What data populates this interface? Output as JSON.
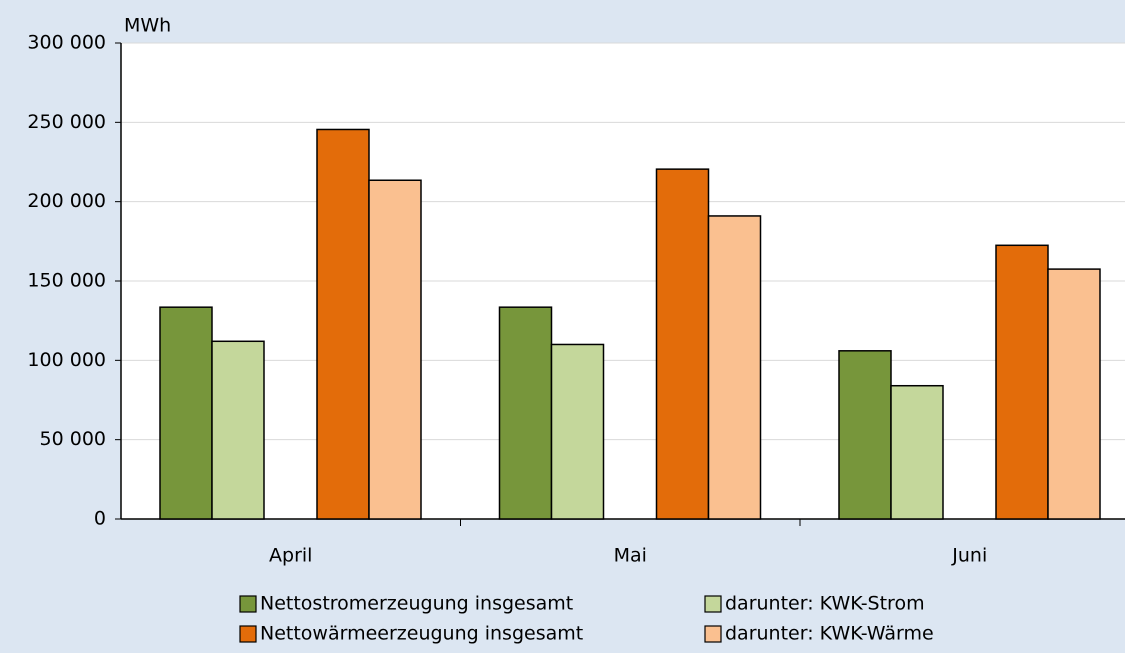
{
  "chart_data": {
    "type": "bar",
    "y_unit_label": "MWh",
    "categories": [
      "April",
      "Mai",
      "Juni"
    ],
    "series": [
      {
        "name": "Nettostromerzeugung insgesamt",
        "color": "#77963b",
        "values": [
          133500,
          133500,
          106000
        ]
      },
      {
        "name": "darunter: KWK-Strom",
        "color": "#c4d79b",
        "values": [
          112000,
          110000,
          84000
        ]
      },
      {
        "name": "Nettowärmeerzeugung insgesamt",
        "color": "#e36c0a",
        "values": [
          245500,
          220500,
          172500
        ]
      },
      {
        "name": "darunter: KWK-Wärme",
        "color": "#fac090",
        "values": [
          213500,
          191000,
          157500
        ]
      }
    ],
    "ylim": [
      0,
      300000
    ],
    "yticks": [
      {
        "value": 0,
        "label": "0"
      },
      {
        "value": 50000,
        "label": "50 000"
      },
      {
        "value": 100000,
        "label": "100 000"
      },
      {
        "value": 150000,
        "label": "150 000"
      },
      {
        "value": 200000,
        "label": "200 000"
      },
      {
        "value": 250000,
        "label": "250 000"
      },
      {
        "value": 300000,
        "label": "300 000"
      }
    ],
    "grid": true
  }
}
